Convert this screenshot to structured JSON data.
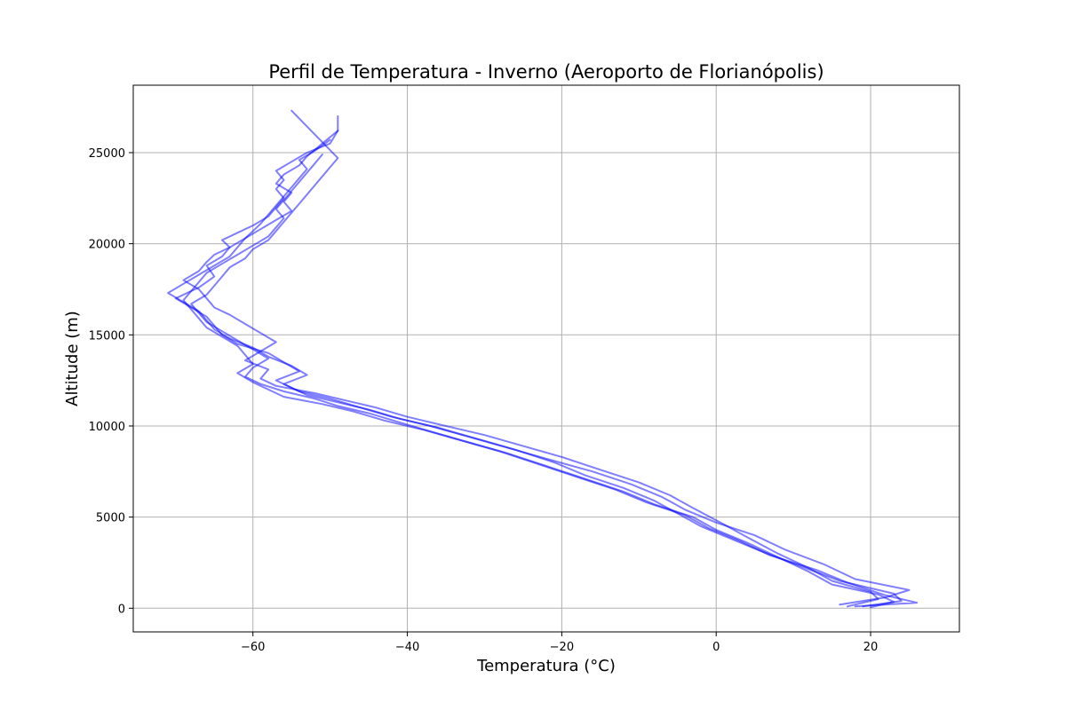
{
  "chart_data": {
    "type": "line",
    "title": "Perfil de Temperatura - Inverno (Aeroporto de Florianópolis)",
    "xlabel": "Temperatura (°C)",
    "ylabel": "Altitude (m)",
    "xlim": [
      -75.5,
      31.5
    ],
    "ylim": [
      -1300,
      28700
    ],
    "xticks": [
      -60,
      -40,
      -20,
      0,
      20
    ],
    "yticks": [
      0,
      5000,
      10000,
      15000,
      20000,
      25000
    ],
    "xtick_labels": [
      "−60",
      "−40",
      "−20",
      "0",
      "20"
    ],
    "ytick_labels": [
      "0",
      "5000",
      "10000",
      "15000",
      "20000",
      "25000"
    ],
    "grid": true,
    "line_color": "#0000ff",
    "line_opacity": 0.5,
    "series": [
      {
        "x": [
          17,
          21,
          20,
          15,
          12,
          8,
          4,
          1,
          -3,
          -6,
          -10,
          -15,
          -20,
          -25,
          -30,
          -35,
          -40,
          -44,
          -48,
          -52,
          -57,
          -59,
          -58,
          -61,
          -59,
          -57,
          -59,
          -61,
          -63,
          -65,
          -66,
          -67,
          -69,
          -67,
          -66,
          -65,
          -63,
          -64,
          -62,
          -60,
          -58,
          -57,
          -56,
          -57,
          -56,
          -57,
          -55,
          -53,
          -50,
          -49,
          -49
        ],
        "y": [
          100,
          500,
          900,
          1500,
          2200,
          3000,
          3900,
          4600,
          5500,
          6200,
          6900,
          7600,
          8300,
          8900,
          9500,
          10000,
          10500,
          11000,
          11400,
          11800,
          12200,
          12600,
          13100,
          13600,
          14100,
          14600,
          15100,
          15600,
          16100,
          16500,
          17000,
          17500,
          18000,
          18500,
          19000,
          19400,
          19800,
          20200,
          20600,
          21000,
          21500,
          22000,
          22500,
          23000,
          23500,
          24000,
          24500,
          25000,
          25500,
          26200,
          27000
        ]
      },
      {
        "x": [
          19,
          24,
          23,
          16,
          11,
          6,
          2,
          -2,
          -5,
          -8,
          -12,
          -17,
          -21,
          -26,
          -31,
          -36,
          -41,
          -45,
          -49,
          -53,
          -55,
          -57,
          -54,
          -56,
          -58,
          -62,
          -64,
          -65,
          -66,
          -68,
          -70,
          -67,
          -65,
          -66,
          -64,
          -63,
          -61,
          -60,
          -59,
          -58,
          -57,
          -56,
          -55,
          -54,
          -53,
          -54,
          -52,
          -50
        ],
        "y": [
          100,
          400,
          800,
          1500,
          2300,
          3100,
          3800,
          4500,
          5200,
          5900,
          6600,
          7300,
          8000,
          8700,
          9300,
          9900,
          10400,
          10900,
          11300,
          11700,
          12100,
          12500,
          13000,
          13500,
          14000,
          14500,
          15000,
          15500,
          16000,
          16500,
          17000,
          17600,
          18200,
          18800,
          19300,
          19800,
          20300,
          20700,
          21100,
          21600,
          22100,
          22600,
          23100,
          23600,
          24100,
          24600,
          25100,
          25700
        ]
      },
      {
        "x": [
          16,
          22,
          25,
          18,
          14,
          9,
          5,
          0,
          -4,
          -7,
          -11,
          -16,
          -22,
          -27,
          -32,
          -37,
          -42,
          -46,
          -50,
          -54,
          -56,
          -53,
          -55,
          -58,
          -60,
          -63,
          -65,
          -66,
          -67,
          -69,
          -71,
          -69,
          -67,
          -65,
          -63,
          -62,
          -61,
          -59,
          -57,
          -55,
          -56,
          -55,
          -57,
          -56,
          -54,
          -53,
          -51,
          -49
        ],
        "y": [
          200,
          600,
          1000,
          1600,
          2400,
          3200,
          4000,
          4700,
          5400,
          6100,
          6800,
          7500,
          8200,
          8800,
          9400,
          10000,
          10500,
          11000,
          11500,
          11900,
          12300,
          12800,
          13300,
          13800,
          14300,
          14800,
          15300,
          15800,
          16300,
          16800,
          17300,
          17800,
          18300,
          18800,
          19300,
          19800,
          20300,
          20800,
          21300,
          21800,
          22300,
          22800,
          23300,
          23800,
          24300,
          24800,
          25500,
          26200
        ]
      },
      {
        "x": [
          18,
          26,
          22,
          17,
          13,
          7,
          3,
          -1,
          -4,
          -9,
          -13,
          -18,
          -23,
          -28,
          -33,
          -38,
          -43,
          -47,
          -51,
          -56,
          -58,
          -60,
          -62,
          -60,
          -61,
          -62,
          -64,
          -66,
          -67,
          -68,
          -69,
          -68,
          -67,
          -66,
          -64,
          -62,
          -60,
          -58,
          -57,
          -56,
          -57,
          -56,
          -55,
          -54,
          -53,
          -52,
          -51
        ],
        "y": [
          100,
          300,
          700,
          1400,
          2100,
          2900,
          3700,
          4400,
          5100,
          5800,
          6500,
          7200,
          7900,
          8600,
          9200,
          9800,
          10300,
          10800,
          11200,
          11600,
          12000,
          12400,
          12900,
          13400,
          13900,
          14400,
          14900,
          15400,
          15900,
          16400,
          16900,
          17400,
          17900,
          18400,
          18900,
          19400,
          19900,
          20400,
          20900,
          21400,
          21900,
          22400,
          22900,
          23400,
          23900,
          24400,
          24900
        ]
      },
      {
        "x": [
          20,
          23,
          21,
          15,
          12,
          8,
          4,
          0,
          -3,
          -8,
          -12,
          -17,
          -22,
          -27,
          -32,
          -37,
          -41,
          -45,
          -49,
          -52,
          -56,
          -59,
          -61,
          -60,
          -58,
          -60,
          -62,
          -64,
          -66,
          -67,
          -68,
          -66,
          -65,
          -64,
          -63,
          -61,
          -60,
          -58,
          -57,
          -56,
          -55,
          -54,
          -53,
          -52,
          -51,
          -50,
          -49,
          -55
        ],
        "y": [
          50,
          350,
          750,
          1300,
          2000,
          2800,
          3600,
          4300,
          5000,
          5700,
          6400,
          7100,
          7800,
          8500,
          9100,
          9700,
          10200,
          10700,
          11100,
          11500,
          11900,
          12300,
          12700,
          13200,
          13700,
          14200,
          14700,
          15200,
          15700,
          16200,
          16700,
          17200,
          17700,
          18200,
          18700,
          19200,
          19700,
          20200,
          20700,
          21200,
          21700,
          22200,
          22700,
          23200,
          23700,
          24200,
          24700,
          27300
        ]
      }
    ]
  }
}
